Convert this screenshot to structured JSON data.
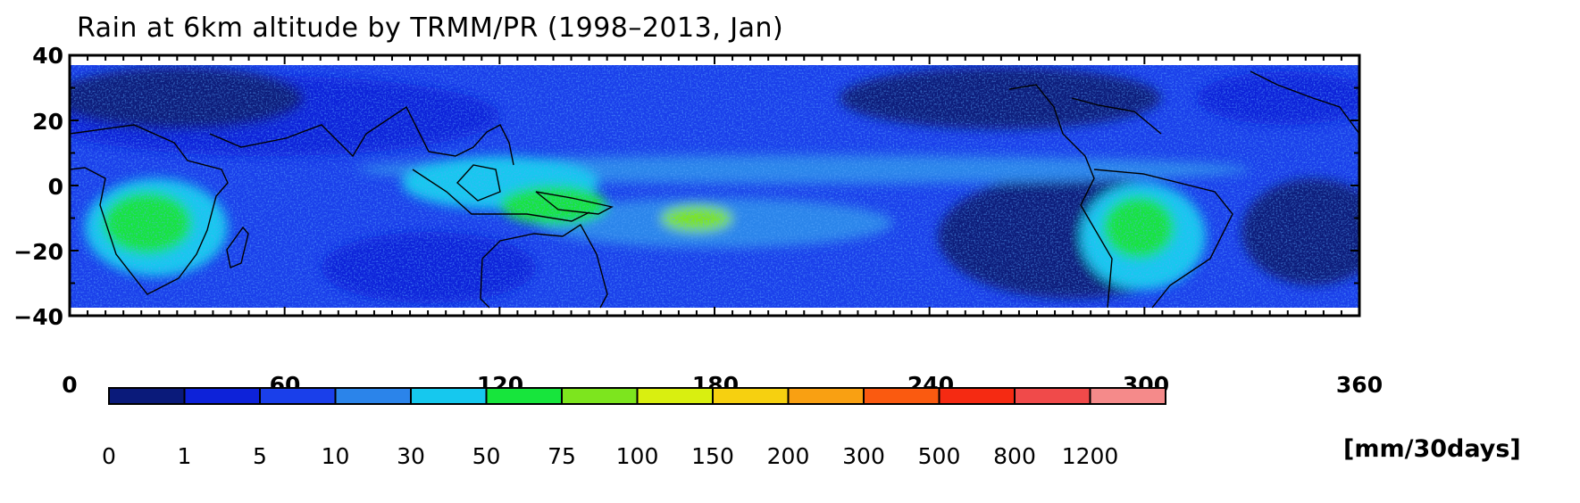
{
  "title": "Rain at 6km altitude by TRMM/PR (1998–2013, Jan)",
  "y_axis": {
    "ticks": [
      "40",
      "20",
      "0",
      "−20",
      "−40"
    ]
  },
  "x_axis": {
    "ticks": [
      "0",
      "60",
      "120",
      "180",
      "240",
      "300",
      "360"
    ]
  },
  "colorbar": {
    "labels": [
      "0",
      "1",
      "5",
      "10",
      "30",
      "50",
      "75",
      "100",
      "150",
      "200",
      "300",
      "500",
      "800",
      "1200"
    ],
    "colors": [
      "#0a1a7a",
      "#0d22d9",
      "#1a3fea",
      "#2b84ea",
      "#16c8ee",
      "#17e53c",
      "#7de51e",
      "#d9ef10",
      "#f6d010",
      "#f9a012",
      "#fa5a10",
      "#f52a12",
      "#f04a4a",
      "#f58a8a"
    ],
    "units": "[mm/30days]"
  },
  "map": {
    "lon_range": [
      0,
      360
    ],
    "lat_range": [
      -40,
      40
    ],
    "data_lat_range": [
      -37,
      37
    ]
  }
}
